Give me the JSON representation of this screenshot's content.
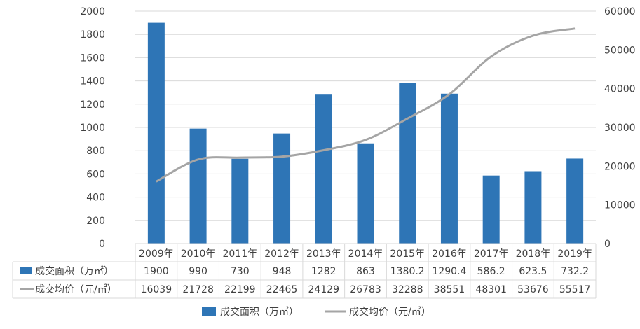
{
  "chart_data": {
    "type": "bar",
    "categories": [
      "2009年",
      "2010年",
      "2011年",
      "2012年",
      "2013年",
      "2014年",
      "2015年",
      "2016年",
      "2017年",
      "2018年",
      "2019年"
    ],
    "series": [
      {
        "name": "成交面积（万㎡）",
        "kind": "bar",
        "axis": "left",
        "color": "#2e75b6",
        "values": [
          1900,
          990,
          730,
          948,
          1282,
          863,
          1380.2,
          1290.4,
          586.2,
          623.5,
          732.2
        ],
        "labels": [
          "1900",
          "990",
          "730",
          "948",
          "1282",
          "863",
          "1380.2",
          "1290.4",
          "586.2",
          "623.5",
          "732.2"
        ]
      },
      {
        "name": "成交均价（元/㎡）",
        "kind": "line",
        "axis": "right",
        "color": "#a5a5a5",
        "values": [
          16039,
          21728,
          22199,
          22465,
          24129,
          26783,
          32288,
          38551,
          48301,
          53676,
          55517
        ],
        "labels": [
          "16039",
          "21728",
          "22199",
          "22465",
          "24129",
          "26783",
          "32288",
          "38551",
          "48301",
          "53676",
          "55517"
        ]
      }
    ],
    "y_left": {
      "range": [
        0,
        2000
      ],
      "ticks": [
        "0",
        "200",
        "400",
        "600",
        "800",
        "1000",
        "1200",
        "1400",
        "1600",
        "1800",
        "2000"
      ]
    },
    "y_right": {
      "range": [
        0,
        60000
      ],
      "ticks": [
        "0",
        "10000",
        "20000",
        "30000",
        "40000",
        "50000",
        "60000"
      ]
    },
    "grid": true,
    "data_table": true,
    "legend_position": "bottom"
  }
}
